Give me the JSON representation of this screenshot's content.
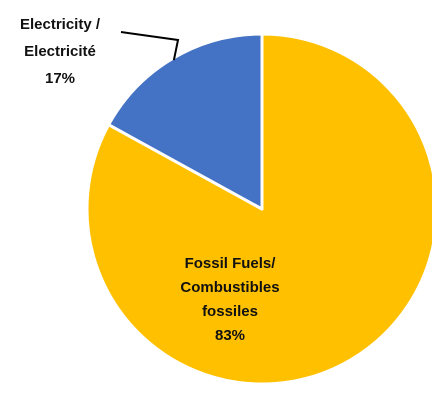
{
  "chart_data": {
    "type": "pie",
    "title": "",
    "start_angle_deg": 0,
    "direction": "clockwise",
    "slices": [
      {
        "label_lines": [
          "Fossil Fuels/",
          "Combustibles",
          "fossiles",
          "83%"
        ],
        "value": 83,
        "color": "#FFC000"
      },
      {
        "label_lines": [
          "Electricity /",
          "Electricité",
          "17%"
        ],
        "value": 17,
        "color": "#4472C4"
      }
    ],
    "slice_border_color": "#ffffff",
    "legend": "none"
  }
}
